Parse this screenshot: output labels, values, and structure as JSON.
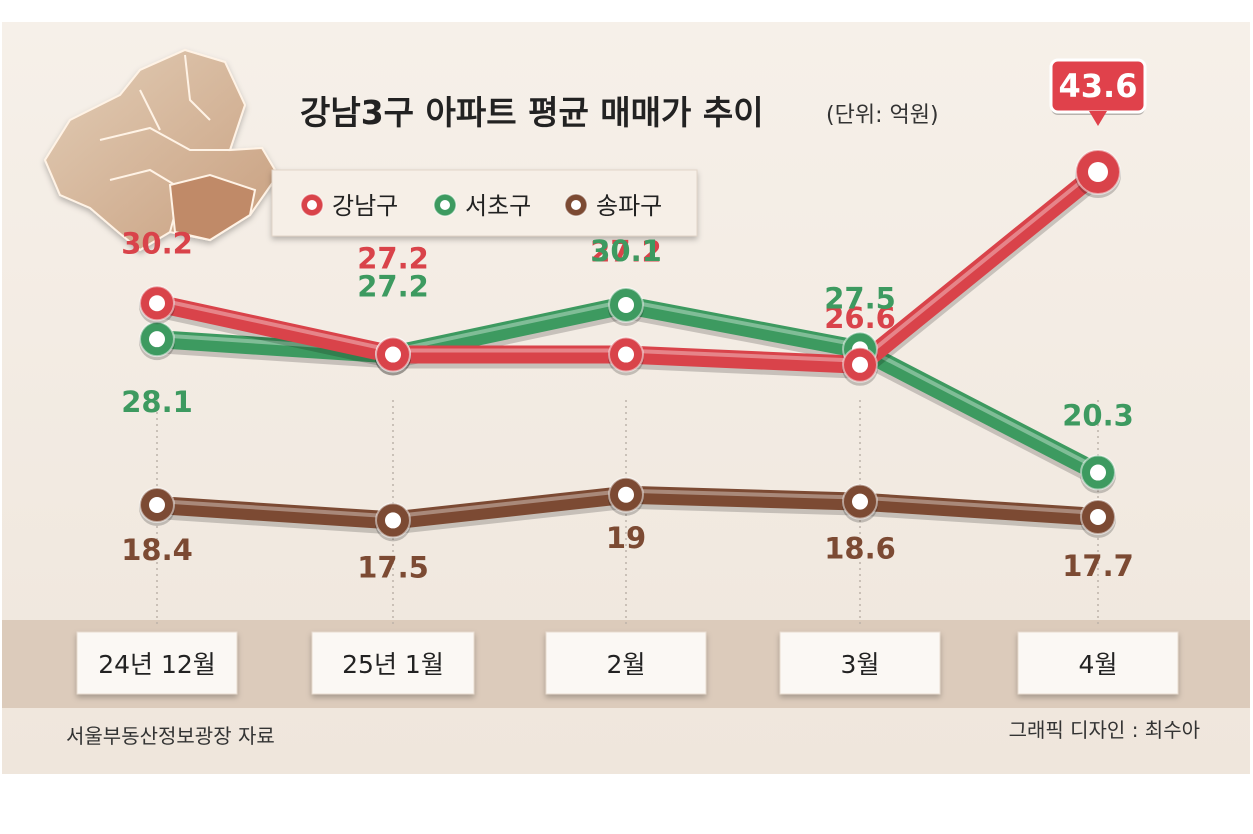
{
  "chart_data": {
    "type": "line",
    "title": "강남3구 아파트 평균 매매가 추이",
    "unit": "(단위: 억원)",
    "categories": [
      "24년 12월",
      "25년 1월",
      "2월",
      "3월",
      "4월"
    ],
    "series": [
      {
        "name": "강남구",
        "color": "#d9434a",
        "values": [
          30.2,
          27.2,
          27.2,
          26.6,
          43.6
        ],
        "labels": [
          "30.2",
          "27.2",
          "27.2",
          "26.6",
          "43.6"
        ]
      },
      {
        "name": "서초구",
        "color": "#3d9a60",
        "values": [
          28.1,
          27.2,
          30.1,
          27.5,
          20.3
        ],
        "labels": [
          "28.1",
          "27.2",
          "30.1",
          "27.5",
          "20.3"
        ]
      },
      {
        "name": "송파구",
        "color": "#7c4a33",
        "values": [
          18.4,
          17.5,
          19,
          18.6,
          17.7
        ],
        "labels": [
          "18.4",
          "17.5",
          "19",
          "18.6",
          "17.7"
        ]
      }
    ],
    "legend_position": "top-left",
    "source": "서울부동산정보광장 자료",
    "credit": "그래픽 디자인 : 최수아"
  }
}
